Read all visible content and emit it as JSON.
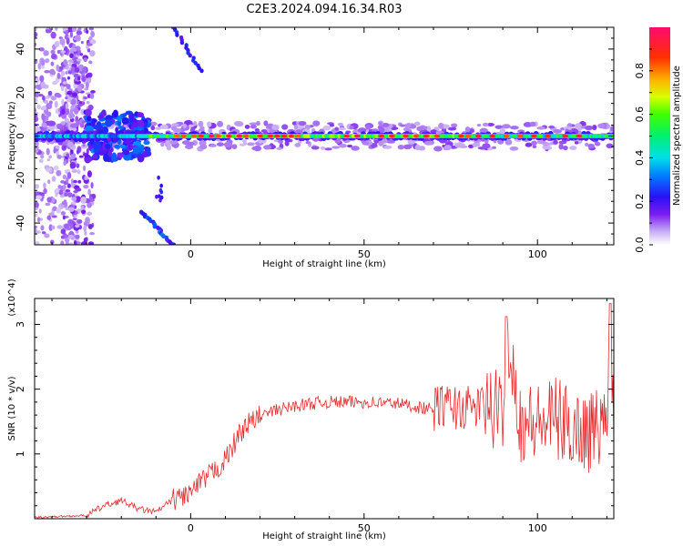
{
  "title": "C2E3.2024.094.16.34.R03",
  "chart_data": [
    {
      "type": "heatmap",
      "title": "",
      "xlabel": "Height of straight line (km)",
      "ylabel": "Frequency (Hz)",
      "xlim": [
        -45,
        122
      ],
      "ylim": [
        -50,
        50
      ],
      "xticks": [
        0,
        50,
        100
      ],
      "yticks": [
        -40,
        -20,
        0,
        20,
        40
      ],
      "colorbar": {
        "label": "Normalized spectral amplitude",
        "range": [
          0,
          1
        ],
        "ticks": [
          "0.0",
          "0.2",
          "0.4",
          "0.6",
          "0.8"
        ],
        "colormap": "rainbow (white-purple-blue-cyan-green-yellow-orange-red-pink)"
      },
      "features": [
        {
          "name": "zero-frequency band",
          "x_range": [
            -45,
            122
          ],
          "frequency": 0,
          "peak_amplitude": 0.95
        },
        {
          "name": "upper streak",
          "x": [
            -5,
            3
          ],
          "y": [
            50,
            30
          ]
        },
        {
          "name": "lower streak",
          "x": [
            -14,
            -5
          ],
          "y": [
            -35,
            -50
          ]
        }
      ]
    },
    {
      "type": "line",
      "title": "",
      "xlabel": "Height of straight line (km)",
      "ylabel": "SNR (10 * v/v)",
      "y_multiplier": "(x10^4)",
      "xlim": [
        -45,
        122
      ],
      "ylim": [
        0,
        3.4
      ],
      "xticks": [
        0,
        50,
        100
      ],
      "yticks": [
        1,
        2,
        3
      ],
      "series": [
        {
          "color": "#e8292b",
          "x": [
            -45,
            -30,
            -25,
            -20,
            -15,
            -10,
            -5,
            0,
            5,
            10,
            15,
            20,
            25,
            30,
            35,
            40,
            50,
            60,
            70,
            72,
            80,
            85,
            90,
            91,
            95,
            100,
            105,
            110,
            115,
            120,
            121,
            122
          ],
          "y": [
            0.02,
            0.05,
            0.2,
            0.28,
            0.15,
            0.1,
            0.3,
            0.4,
            0.65,
            0.9,
            1.4,
            1.58,
            1.68,
            1.74,
            1.78,
            1.8,
            1.8,
            1.78,
            1.68,
            1.75,
            1.7,
            1.75,
            1.6,
            3.12,
            1.5,
            1.45,
            1.55,
            1.4,
            1.35,
            1.5,
            3.32,
            1.3
          ]
        }
      ]
    }
  ]
}
